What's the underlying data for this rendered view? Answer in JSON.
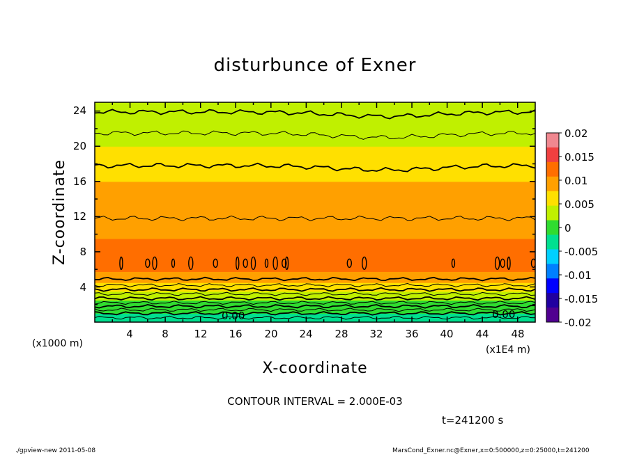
{
  "chart_data": {
    "type": "heatmap",
    "title": "disturbunce of Exner",
    "xlabel": "X-coordinate",
    "ylabel": "Z-coordinate",
    "x_unit": "(x1E4 m)",
    "y_unit": "(x1000 m)",
    "xlim": [
      0,
      50
    ],
    "ylim": [
      0,
      25
    ],
    "x_ticks": [
      "4",
      "8",
      "12",
      "16",
      "20",
      "24",
      "28",
      "32",
      "36",
      "40",
      "44",
      "48"
    ],
    "y_ticks": [
      "4",
      "8",
      "12",
      "16",
      "20",
      "24"
    ],
    "colorbar": {
      "min": -0.02,
      "max": 0.02,
      "labels": [
        "0.02",
        "0.015",
        "0.01",
        "0.005",
        "0",
        "-0.005",
        "-0.01",
        "-0.015",
        "-0.02"
      ],
      "colors": [
        "#f08890",
        "#f04040",
        "#ff6e00",
        "#ffa000",
        "#ffe000",
        "#c0f000",
        "#30dc30",
        "#00e090",
        "#00d0ff",
        "#0080ff",
        "#0000ff",
        "#2000a0",
        "#500090"
      ]
    },
    "profile": [
      {
        "z": 0,
        "value": -0.003
      },
      {
        "z": 2,
        "value": 0.0
      },
      {
        "z": 4,
        "value": 0.006
      },
      {
        "z": 6,
        "value": 0.0115
      },
      {
        "z": 7.5,
        "value": 0.012
      },
      {
        "z": 9,
        "value": 0.011
      },
      {
        "z": 12,
        "value": 0.0095
      },
      {
        "z": 15,
        "value": 0.0085
      },
      {
        "z": 18,
        "value": 0.006
      },
      {
        "z": 21,
        "value": 0.004
      },
      {
        "z": 23.5,
        "value": 0.002
      },
      {
        "z": 25,
        "value": 0.0015
      }
    ],
    "contour_interval": "CONTOUR INTERVAL = 2.000E-03",
    "contour_zero_label": "0.00",
    "time_label": "t=241200 s"
  },
  "footer": {
    "left": "./gpview-new   2011-05-08",
    "right": "MarsCond_Exner.nc@Exner,x=0:500000,z=0:25000,t=241200"
  }
}
